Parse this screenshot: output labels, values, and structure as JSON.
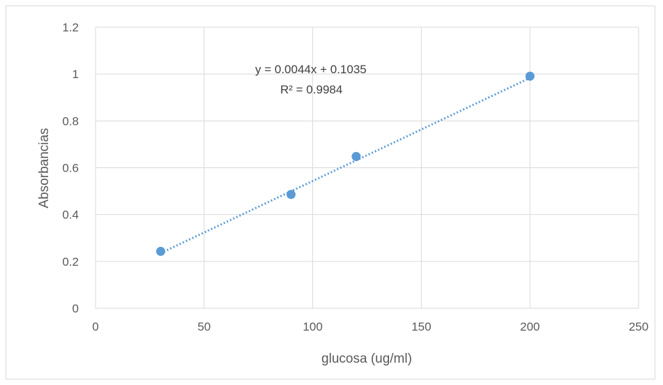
{
  "chart_data": {
    "type": "scatter",
    "title": "",
    "xlabel": "glucosa (ug/ml)",
    "ylabel": "Absorbancias",
    "xlim": [
      0,
      250
    ],
    "ylim": [
      0,
      1.2
    ],
    "x_ticks": [
      "0",
      "50",
      "100",
      "150",
      "200",
      "250"
    ],
    "y_ticks": [
      "0",
      "0.2",
      "0.4",
      "0.6",
      "0.8",
      "1",
      "1.2"
    ],
    "grid": true,
    "legend": "none",
    "series": [
      {
        "x": [
          30,
          90,
          120,
          200
        ],
        "y": [
          0.243,
          0.486,
          0.648,
          0.991
        ],
        "color": "#5b9bd5"
      }
    ],
    "trendline": {
      "type": "linear",
      "slope": 0.0044,
      "intercept": 0.1035,
      "x_range": [
        30,
        200
      ],
      "style": "dotted",
      "color": "#5b9bd5",
      "equation": "y = 0.0044x + 0.1035",
      "r_squared": "R² = 0.9984"
    }
  }
}
